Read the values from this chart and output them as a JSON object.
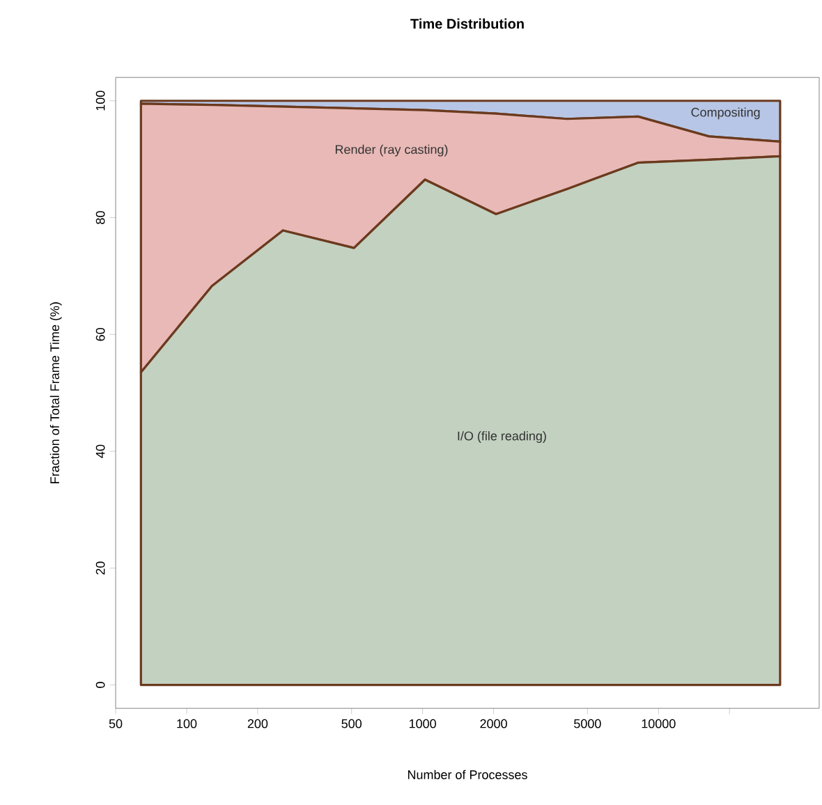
{
  "chart_data": {
    "type": "area",
    "title": "Time Distribution",
    "xlabel": "Number of Processes",
    "ylabel": "Fraction of Total Frame Time (%)",
    "x": [
      64,
      128,
      256,
      512,
      1024,
      2048,
      4096,
      8192,
      16384,
      32768
    ],
    "stacked": true,
    "log": "x",
    "xlim": [
      50,
      48000
    ],
    "ylim": [
      -4,
      104
    ],
    "xticks": [
      50,
      100,
      200,
      500,
      1000,
      2000,
      5000,
      10000,
      {
        "value": 20000,
        "label": null
      }
    ],
    "yticks": [
      0,
      20,
      40,
      60,
      80,
      100
    ],
    "series": [
      {
        "name": "I/O (file reading)",
        "color": "#c3d1c1",
        "values": [
          53.5,
          68.3,
          77.8,
          74.8,
          86.5,
          80.6,
          84.9,
          89.4,
          89.9,
          90.5
        ]
      },
      {
        "name": "Render (ray casting)",
        "color": "#e8b9b6",
        "values": [
          46.0,
          31.0,
          21.2,
          23.9,
          11.9,
          17.2,
          12.0,
          7.9,
          4.0,
          2.5
        ]
      },
      {
        "name": "Compositing",
        "color": "#b7c6e6",
        "values": [
          0.5,
          0.7,
          1.0,
          1.3,
          1.6,
          2.2,
          3.1,
          2.7,
          6.1,
          7.0
        ]
      }
    ]
  }
}
